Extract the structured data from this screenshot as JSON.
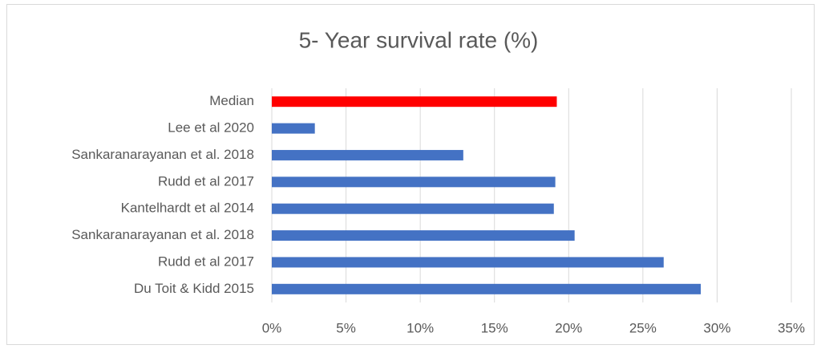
{
  "chart_data": {
    "type": "bar",
    "orientation": "horizontal",
    "title": "5- Year survival rate (%)",
    "categories": [
      "Median ",
      "Lee et al 2020",
      "Sankaranarayanan et al. 2018",
      "Rudd  et al 2017",
      "Kantelhardt et al 2014",
      "Sankaranarayanan et al. 2018",
      "Rudd  et al 2017",
      "Du Toit & Kidd  2015"
    ],
    "values": [
      19.2,
      2.9,
      12.9,
      19.1,
      19.0,
      20.4,
      26.4,
      28.9
    ],
    "colors": [
      "#ff0000",
      "#4472c4",
      "#4472c4",
      "#4472c4",
      "#4472c4",
      "#4472c4",
      "#4472c4",
      "#4472c4"
    ],
    "xlim": [
      0,
      35
    ],
    "xticks": [
      {
        "value": 0,
        "label": "0%"
      },
      {
        "value": 5,
        "label": "5%"
      },
      {
        "value": 10,
        "label": "10%"
      },
      {
        "value": 15,
        "label": "15%"
      },
      {
        "value": 20,
        "label": "20%"
      },
      {
        "value": 25,
        "label": "25%"
      },
      {
        "value": 30,
        "label": "30%"
      },
      {
        "value": 35,
        "label": "35%"
      }
    ],
    "grid": true
  }
}
